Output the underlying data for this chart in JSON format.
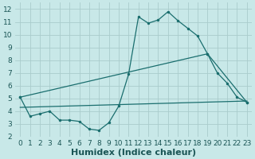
{
  "title": "",
  "xlabel": "Humidex (Indice chaleur)",
  "ylabel": "",
  "background_color": "#c8e8e8",
  "grid_color": "#aacccc",
  "line_color": "#1a6e6e",
  "xlim": [
    -0.5,
    23.5
  ],
  "ylim": [
    2,
    12.5
  ],
  "xticks": [
    0,
    1,
    2,
    3,
    4,
    5,
    6,
    7,
    8,
    9,
    10,
    11,
    12,
    13,
    14,
    15,
    16,
    17,
    18,
    19,
    20,
    21,
    22,
    23
  ],
  "yticks": [
    2,
    3,
    4,
    5,
    6,
    7,
    8,
    9,
    10,
    11,
    12
  ],
  "line1_x": [
    0,
    1,
    2,
    3,
    4,
    5,
    6,
    7,
    8,
    9,
    10,
    11,
    12,
    13,
    14,
    15,
    16,
    17,
    18,
    19,
    20,
    21,
    22,
    23
  ],
  "line1_y": [
    5.1,
    3.6,
    3.8,
    4.0,
    3.3,
    3.3,
    3.2,
    2.6,
    2.5,
    3.1,
    4.4,
    6.9,
    11.4,
    10.9,
    11.15,
    11.8,
    11.1,
    10.5,
    9.9,
    8.5,
    7.0,
    6.2,
    5.1,
    4.7
  ],
  "line2_x": [
    0,
    19,
    23
  ],
  "line2_y": [
    5.1,
    8.5,
    4.7
  ],
  "line3_x": [
    0,
    23
  ],
  "line3_y": [
    4.3,
    4.8
  ],
  "marker_size": 2.5,
  "linewidth": 0.9,
  "xlabel_fontsize": 8,
  "tick_fontsize": 6.5
}
